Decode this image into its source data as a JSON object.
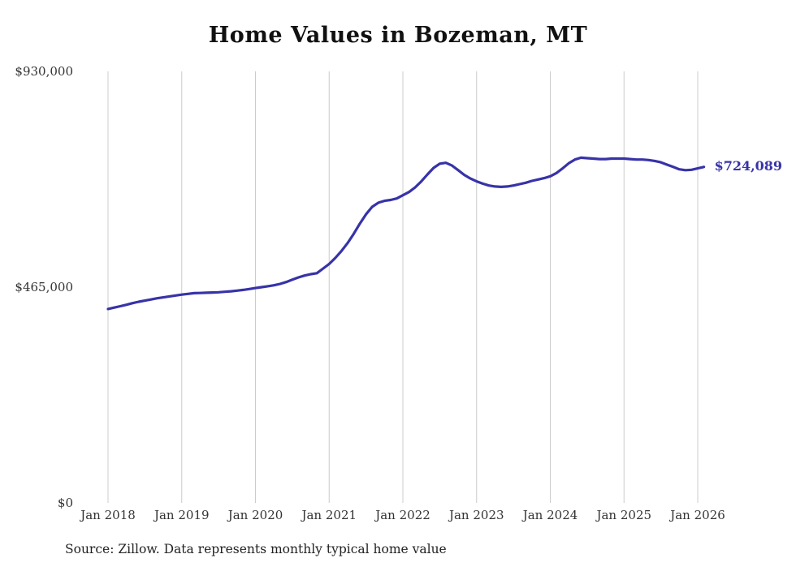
{
  "title": "Home Values in Bozeman, MT",
  "source": "Source: Zillow. Data represents monthly typical home value",
  "end_label": "$724,089",
  "colors": {
    "line": "#3733a8",
    "end_label": "#3733a8",
    "grid": "#cccccc",
    "axis_text": "#333333",
    "title_text": "#111111"
  },
  "chart_data": {
    "type": "line",
    "title": "Home Values in Bozeman, MT",
    "xlabel": "",
    "ylabel": "",
    "ylim": [
      0,
      930000
    ],
    "grid": "vertical-only",
    "legend": "none",
    "y_ticks": [
      {
        "label": "$930,000",
        "value": 930000
      },
      {
        "label": "$465,000",
        "value": 465000
      },
      {
        "label": "$0",
        "value": 0
      }
    ],
    "x_ticks": [
      "Jan 2018",
      "Jan 2019",
      "Jan 2020",
      "Jan 2021",
      "Jan 2022",
      "Jan 2023",
      "Jan 2024",
      "Jan 2025",
      "Jan 2026"
    ],
    "x_start_month": "Jan 2018",
    "months_per_tick": 12,
    "end_value": 724089,
    "series": [
      {
        "name": "Typical home value",
        "monthly_values": [
          418000,
          421000,
          424000,
          427000,
          430500,
          433500,
          436000,
          438500,
          441000,
          443000,
          445000,
          447000,
          449000,
          450500,
          452000,
          452500,
          453000,
          453500,
          454000,
          455000,
          456000,
          457500,
          459000,
          461000,
          463000,
          465000,
          467000,
          469000,
          472000,
          476000,
          481000,
          486000,
          490000,
          493000,
          495000,
          505000,
          515000,
          528000,
          543000,
          560000,
          580000,
          602000,
          622000,
          638000,
          647000,
          651000,
          653000,
          656000,
          663000,
          670000,
          680000,
          693000,
          708000,
          722000,
          731000,
          733000,
          727000,
          717000,
          707000,
          699000,
          693000,
          688000,
          684000,
          682000,
          681000,
          682000,
          684000,
          687000,
          690000,
          694000,
          697000,
          700000,
          704000,
          711000,
          721000,
          732000,
          740000,
          744000,
          743000,
          742000,
          741000,
          741000,
          742000,
          742000,
          742000,
          741000,
          740000,
          740000,
          739000,
          737000,
          734000,
          729000,
          724000,
          719000,
          717000,
          718000,
          721000,
          724089
        ]
      }
    ]
  }
}
